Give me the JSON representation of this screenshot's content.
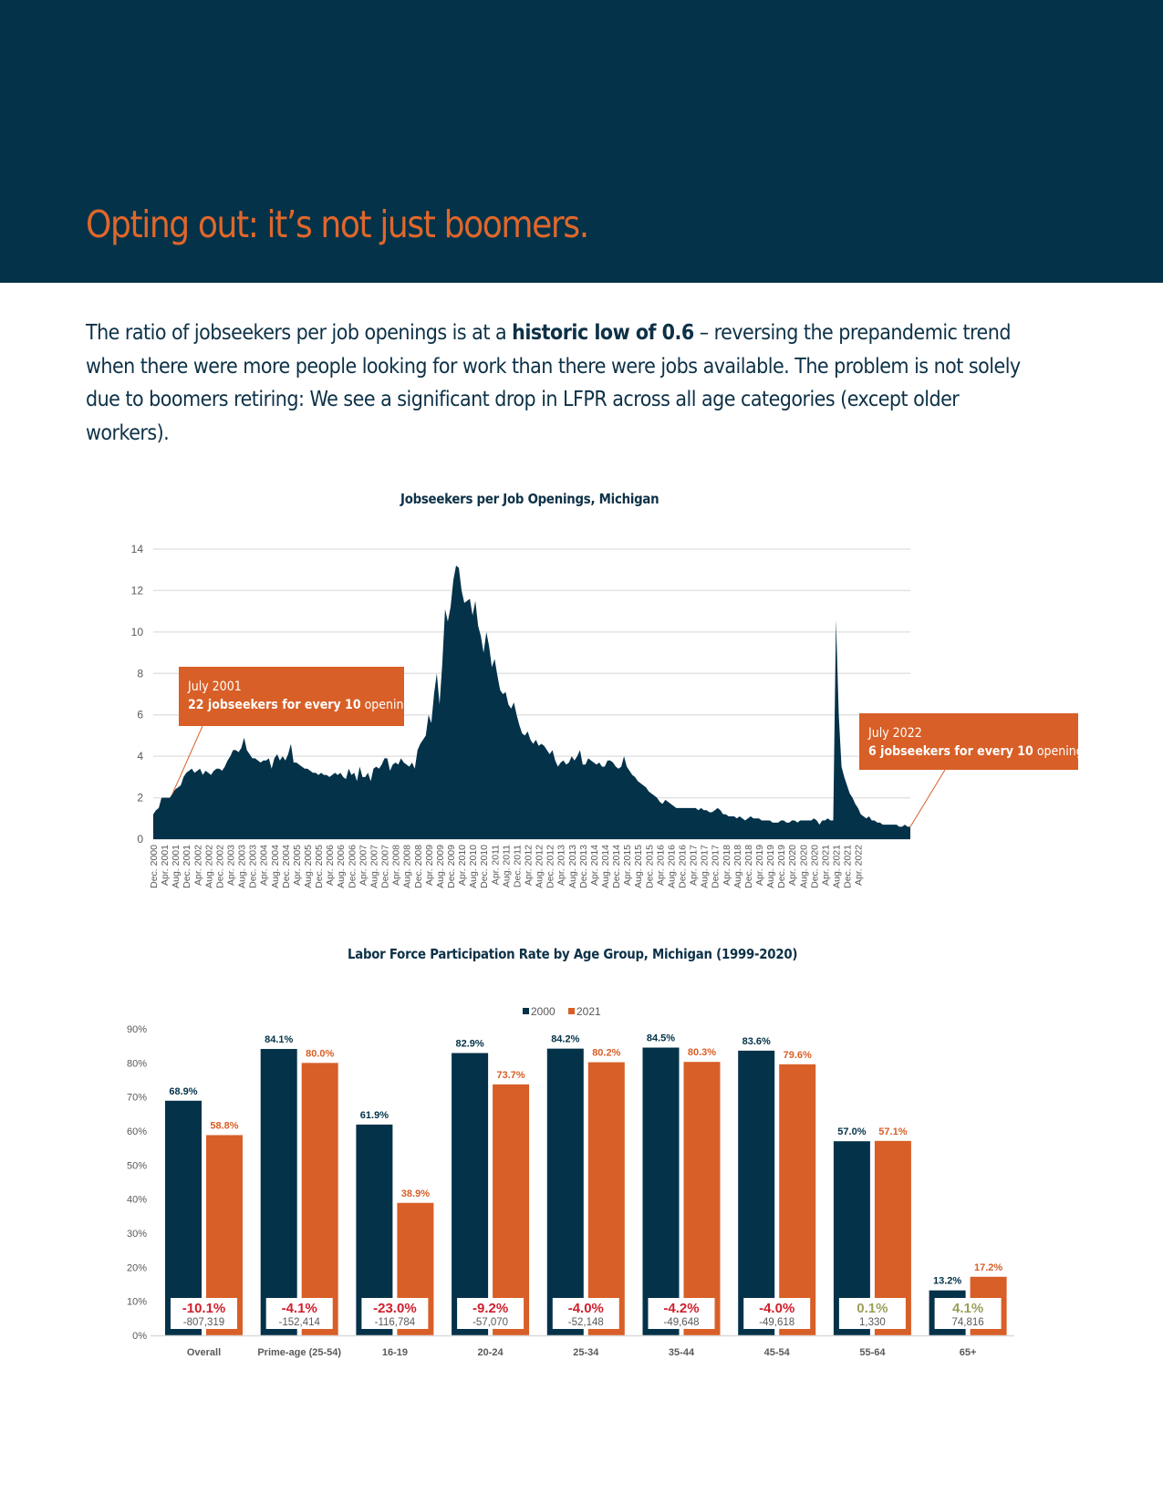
{
  "header": {
    "title": "Opting out: it’s not just boomers."
  },
  "intro": {
    "text_before": "The ratio of jobseekers per job openings is at a ",
    "emphasis": "historic low of 0.6",
    "text_after": " – reversing the prepandemic trend when there were more people looking for work than there were jobs available. The problem is not solely due to boomers retiring: We see a significant drop in LFPR across all age categories (except older workers)."
  },
  "colors": {
    "navy": "#033249",
    "orange": "#d85f27",
    "title_orange": "#e0672a",
    "negative_red": "#d0202e",
    "positive_olive": "#9aa05a",
    "grid": "#e3e3e3",
    "axis_text": "#595959"
  },
  "callouts": {
    "first": {
      "date": "July 2001",
      "num": "22",
      "mid": " jobseekers for every ",
      "num2": "10",
      "tail": " openings"
    },
    "second": {
      "date": "July 2022",
      "num": "6",
      "mid": " jobseekers for every ",
      "num2": "10",
      "tail": " openings"
    }
  },
  "chart_data": [
    {
      "type": "area",
      "title": "Jobseekers per Job Openings, Michigan",
      "xlabel": "",
      "ylabel": "",
      "ylim": [
        0,
        14
      ],
      "yticks": [
        0,
        2,
        4,
        6,
        8,
        10,
        12,
        14
      ],
      "grid": true,
      "x_start": "Dec. 2000",
      "x_end": "July 2022",
      "x_step_months": 1,
      "tick_labels": [
        "Dec. 2000",
        "Apr. 2001",
        "Aug. 2001",
        "Dec. 2001",
        "Apr. 2002",
        "Aug. 2002",
        "Dec. 2002",
        "Apr. 2003",
        "Aug. 2003",
        "Dec. 2003",
        "Apr. 2004",
        "Aug. 2004",
        "Dec. 2004",
        "Apr. 2005",
        "Aug. 2005",
        "Dec. 2005",
        "Apr. 2006",
        "Aug. 2006",
        "Dec. 2006",
        "Apr. 2007",
        "Aug. 2007",
        "Dec. 2007",
        "Apr. 2008",
        "Aug. 2008",
        "Dec. 2008",
        "Apr. 2009",
        "Aug. 2009",
        "Dec. 2009",
        "Apr. 2010",
        "Aug. 2010",
        "Dec. 2010",
        "Apr. 2011",
        "Aug. 2011",
        "Dec. 2011",
        "Apr. 2012",
        "Aug. 2012",
        "Dec. 2012",
        "Apr. 2013",
        "Aug. 2013",
        "Dec. 2013",
        "Apr. 2014",
        "Aug. 2014",
        "Dec. 2014",
        "Apr. 2015",
        "Aug. 2015",
        "Dec. 2015",
        "Apr. 2016",
        "Aug. 2016",
        "Dec. 2016",
        "Apr. 2017",
        "Aug. 2017",
        "Dec. 2017",
        "Apr. 2018",
        "Aug. 2018",
        "Dec. 2018",
        "Apr. 2019",
        "Aug. 2019",
        "Dec. 2019",
        "Apr. 2020",
        "Aug. 2020",
        "Dec. 2020",
        "Apr. 2021",
        "Aug. 2021",
        "Dec. 2021",
        "Apr. 2022"
      ],
      "values": [
        1.2,
        1.4,
        1.5,
        2.0,
        2.0,
        2.0,
        2.0,
        2.2,
        2.4,
        2.5,
        2.6,
        3.0,
        3.2,
        3.3,
        3.4,
        3.2,
        3.3,
        3.4,
        3.1,
        3.3,
        3.2,
        3.1,
        3.3,
        3.4,
        3.4,
        3.3,
        3.5,
        3.8,
        4.0,
        4.3,
        4.3,
        4.2,
        4.4,
        4.9,
        4.3,
        4.1,
        3.9,
        3.9,
        3.8,
        3.7,
        3.8,
        3.8,
        3.9,
        3.4,
        3.9,
        4.1,
        3.8,
        4.0,
        3.8,
        4.1,
        4.6,
        3.7,
        3.7,
        3.6,
        3.5,
        3.4,
        3.4,
        3.3,
        3.2,
        3.2,
        3.1,
        3.2,
        3.1,
        3.1,
        3.0,
        3.1,
        3.2,
        3.1,
        3.2,
        3.0,
        2.9,
        3.4,
        3.1,
        3.2,
        2.8,
        3.5,
        3.0,
        3.0,
        3.2,
        2.8,
        3.4,
        3.5,
        3.4,
        3.6,
        3.9,
        3.9,
        3.3,
        3.6,
        3.7,
        3.6,
        3.9,
        3.7,
        3.6,
        3.5,
        3.7,
        3.4,
        4.3,
        4.6,
        4.8,
        5.0,
        6.0,
        5.6,
        7.0,
        8.0,
        6.5,
        8.5,
        11.1,
        10.5,
        11.2,
        12.5,
        13.2,
        13.1,
        12.0,
        11.4,
        11.5,
        11.6,
        10.8,
        11.5,
        10.3,
        9.8,
        9.0,
        10.0,
        9.3,
        8.3,
        8.7,
        7.9,
        7.2,
        7.0,
        7.1,
        6.5,
        6.3,
        6.6,
        6.0,
        5.5,
        5.1,
        5.0,
        5.2,
        4.8,
        4.6,
        4.8,
        4.5,
        4.6,
        4.5,
        4.3,
        4.1,
        4.3,
        3.8,
        3.5,
        3.7,
        3.8,
        3.6,
        3.7,
        4.0,
        3.8,
        4.0,
        4.3,
        3.6,
        3.6,
        3.9,
        3.8,
        3.7,
        3.6,
        3.7,
        3.5,
        3.5,
        3.8,
        3.8,
        3.7,
        3.5,
        3.4,
        3.5,
        4.0,
        3.5,
        3.3,
        3.1,
        3.0,
        2.8,
        2.7,
        2.6,
        2.5,
        2.3,
        2.2,
        2.1,
        2.0,
        1.8,
        1.7,
        1.9,
        1.8,
        1.7,
        1.6,
        1.5,
        1.5,
        1.5,
        1.5,
        1.5,
        1.5,
        1.5,
        1.5,
        1.4,
        1.5,
        1.4,
        1.4,
        1.3,
        1.3,
        1.4,
        1.5,
        1.4,
        1.2,
        1.2,
        1.1,
        1.1,
        1.1,
        1.0,
        1.1,
        1.0,
        0.9,
        1.0,
        1.1,
        1.0,
        1.0,
        1.0,
        0.9,
        0.9,
        0.9,
        0.9,
        0.8,
        0.8,
        0.8,
        0.9,
        0.9,
        0.8,
        0.8,
        0.9,
        0.9,
        0.8,
        0.9,
        0.9,
        0.9,
        0.9,
        0.9,
        1.0,
        0.9,
        0.7,
        0.9,
        0.9,
        1.0,
        0.9,
        0.9,
        10.6,
        6.0,
        3.5,
        3.0,
        2.6,
        2.2,
        2.0,
        1.7,
        1.5,
        1.2,
        1.1,
        1.0,
        1.1,
        0.9,
        0.9,
        0.8,
        0.8,
        0.7,
        0.7,
        0.7,
        0.7,
        0.7,
        0.7,
        0.6,
        0.6,
        0.7,
        0.6,
        0.6
      ]
    },
    {
      "type": "bar",
      "title": "Labor Force Participation Rate by Age Group, Michigan (1999-2020)",
      "xlabel": "",
      "ylabel": "",
      "ylim": [
        0,
        90
      ],
      "yticks": [
        "0%",
        "10%",
        "20%",
        "30%",
        "40%",
        "50%",
        "60%",
        "70%",
        "80%",
        "90%"
      ],
      "grid": false,
      "legend": "top-center",
      "categories": [
        "Overall",
        "Prime-age (25-54)",
        "16-19",
        "20-24",
        "25-34",
        "35-44",
        "45-54",
        "55-64",
        "65+"
      ],
      "series": [
        {
          "name": "2000",
          "values": [
            68.9,
            84.1,
            61.9,
            82.9,
            84.2,
            84.5,
            83.6,
            57.0,
            13.2
          ],
          "labels": [
            "68.9%",
            "84.1%",
            "61.9%",
            "82.9%",
            "84.2%",
            "84.5%",
            "83.6%",
            "57.0%",
            "13.2%"
          ]
        },
        {
          "name": "2021",
          "values": [
            58.8,
            80.0,
            38.9,
            73.7,
            80.2,
            80.3,
            79.6,
            57.1,
            17.2
          ],
          "labels": [
            "58.8%",
            "80.0%",
            "38.9%",
            "73.7%",
            "80.2%",
            "80.3%",
            "79.6%",
            "57.1%",
            "17.2%"
          ]
        }
      ],
      "change_pct": [
        "-10.1%",
        "-4.1%",
        "-23.0%",
        "-9.2%",
        "-4.0%",
        "-4.2%",
        "-4.0%",
        "0.1%",
        "4.1%"
      ],
      "change_count": [
        "-807,319",
        "-152,414",
        "-116,784",
        "-57,070",
        "-52,148",
        "-49,648",
        "-49,618",
        "1,330",
        "74,816"
      ],
      "change_positive": [
        false,
        false,
        false,
        false,
        false,
        false,
        false,
        true,
        true
      ]
    }
  ]
}
